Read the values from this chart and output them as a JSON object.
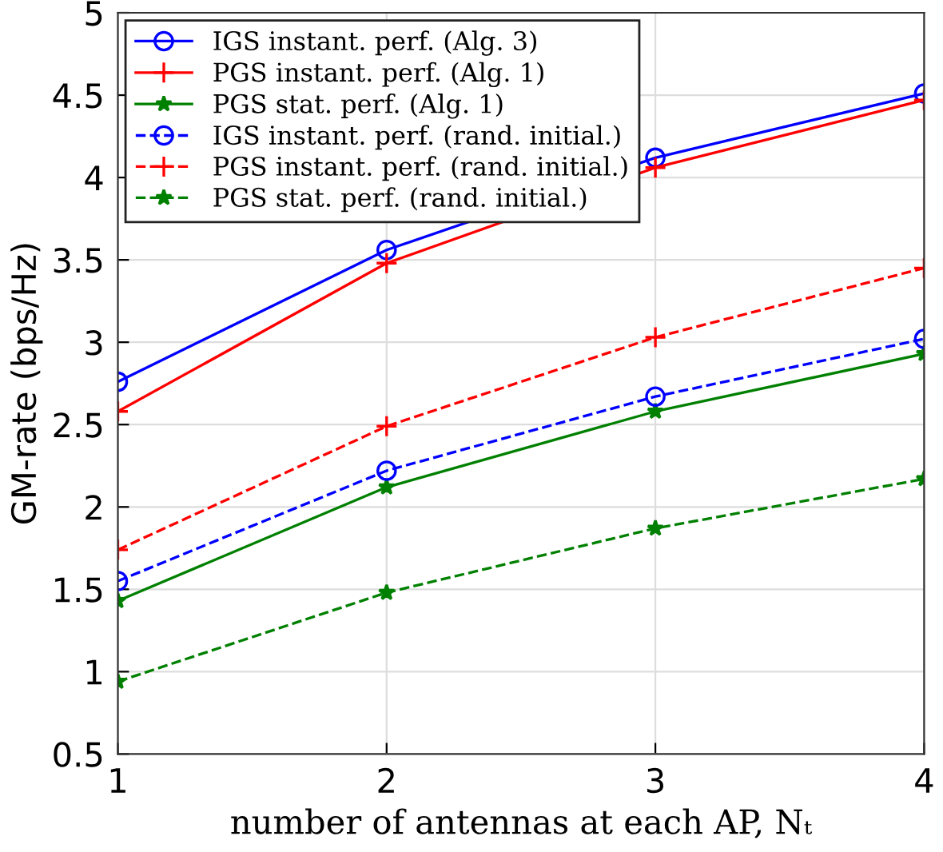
{
  "chart_data": {
    "type": "line",
    "xlabel": "number of antennas at each AP, Nₜ",
    "ylabel": "GM-rate (bps/Hz)",
    "x": [
      1,
      2,
      3,
      4
    ],
    "xlim": [
      1,
      4
    ],
    "xticks": [
      1,
      2,
      3,
      4
    ],
    "ylim": [
      0.5,
      5
    ],
    "yticks": [
      0.5,
      1,
      1.5,
      2,
      2.5,
      3,
      3.5,
      4,
      4.5,
      5
    ],
    "grid": true,
    "legend": "top left",
    "series": [
      {
        "name": "IGS instant. perf. (Alg. 3)",
        "color": "#0000ff",
        "marker": "circle",
        "line_style": "solid",
        "values": [
          2.76,
          3.56,
          4.12,
          4.51
        ]
      },
      {
        "name": "PGS instant. perf. (Alg. 1)",
        "color": "#ff0000",
        "marker": "cross",
        "line_style": "solid",
        "values": [
          2.58,
          3.48,
          4.06,
          4.47
        ]
      },
      {
        "name": "PGS stat. perf. (Alg. 1)",
        "color": "#008000",
        "marker": "star",
        "line_style": "solid",
        "values": [
          1.43,
          2.12,
          2.58,
          2.93
        ]
      },
      {
        "name": "IGS instant. perf. (rand. initial.)",
        "color": "#0000ff",
        "marker": "circle",
        "line_style": "dashed",
        "values": [
          1.55,
          2.22,
          2.67,
          3.02
        ]
      },
      {
        "name": "PGS instant. perf. (rand. initial.)",
        "color": "#ff0000",
        "marker": "cross",
        "line_style": "dashed",
        "values": [
          1.74,
          2.49,
          3.03,
          3.45
        ]
      },
      {
        "name": "PGS stat. perf. (rand. initial.)",
        "color": "#008000",
        "marker": "star",
        "line_style": "dashed",
        "values": [
          0.94,
          1.48,
          1.87,
          2.17
        ]
      }
    ]
  }
}
